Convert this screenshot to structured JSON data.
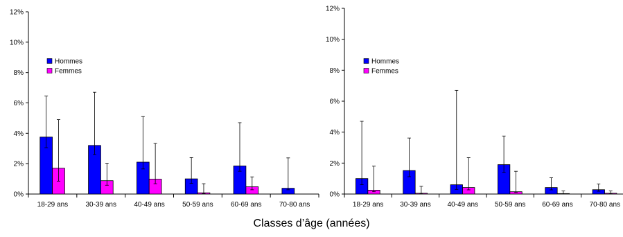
{
  "chart_data": [
    {
      "type": "bar",
      "title": "",
      "xlabel": "",
      "ylabel": "",
      "ylim": [
        0,
        12
      ],
      "y_tick_labels": [
        "0%",
        "2%",
        "4%",
        "6%",
        "8%",
        "10%",
        "12%"
      ],
      "grid": false,
      "legend": "top-left",
      "categories": [
        "18-29 ans",
        "30-39 ans",
        "40-49 ans",
        "50-59 ans",
        "60-69 ans",
        "70-80 ans"
      ],
      "series": [
        {
          "name": "Hommes",
          "color": "#0000FF",
          "values": [
            3.75,
            3.2,
            2.1,
            1.0,
            1.85,
            0.38
          ],
          "error_plus": [
            2.7,
            3.5,
            3.0,
            1.4,
            2.85,
            2.0
          ],
          "error_minus": [
            0.7,
            0.6,
            0.45,
            0.3,
            0.35,
            0.1
          ]
        },
        {
          "name": "Femmes",
          "color": "#FF00FF",
          "values": [
            1.7,
            0.88,
            0.98,
            0.08,
            0.48,
            0.0
          ],
          "error_plus": [
            3.2,
            1.15,
            2.35,
            0.6,
            0.65,
            0.0
          ],
          "error_minus": [
            0.85,
            0.3,
            0.3,
            0.05,
            0.2,
            0.0
          ]
        }
      ]
    },
    {
      "type": "bar",
      "title": "",
      "xlabel": "",
      "ylabel": "",
      "ylim": [
        0,
        12
      ],
      "y_tick_labels": [
        "0%",
        "2%",
        "4%",
        "6%",
        "8%",
        "10%",
        "12%"
      ],
      "grid": false,
      "legend": "top-left",
      "categories": [
        "18-29 ans",
        "30-39 ans",
        "40-49 ans",
        "50-59 ans",
        "60-69 ans",
        "70-80 ans"
      ],
      "series": [
        {
          "name": "Hommes",
          "color": "#0000FF",
          "values": [
            1.0,
            1.52,
            0.6,
            1.9,
            0.42,
            0.28
          ],
          "error_plus": [
            3.7,
            2.1,
            6.1,
            1.85,
            0.63,
            0.37
          ],
          "error_minus": [
            0.4,
            0.4,
            0.3,
            0.5,
            0.15,
            0.1
          ]
        },
        {
          "name": "Femmes",
          "color": "#FF00FF",
          "values": [
            0.25,
            0.05,
            0.42,
            0.15,
            0.03,
            0.05
          ],
          "error_plus": [
            1.55,
            0.45,
            1.93,
            1.32,
            0.17,
            0.15
          ],
          "error_minus": [
            0.1,
            0.03,
            0.15,
            0.05,
            0.02,
            0.03
          ]
        }
      ]
    }
  ],
  "shared_xlabel": "Classes d’âge (années)"
}
